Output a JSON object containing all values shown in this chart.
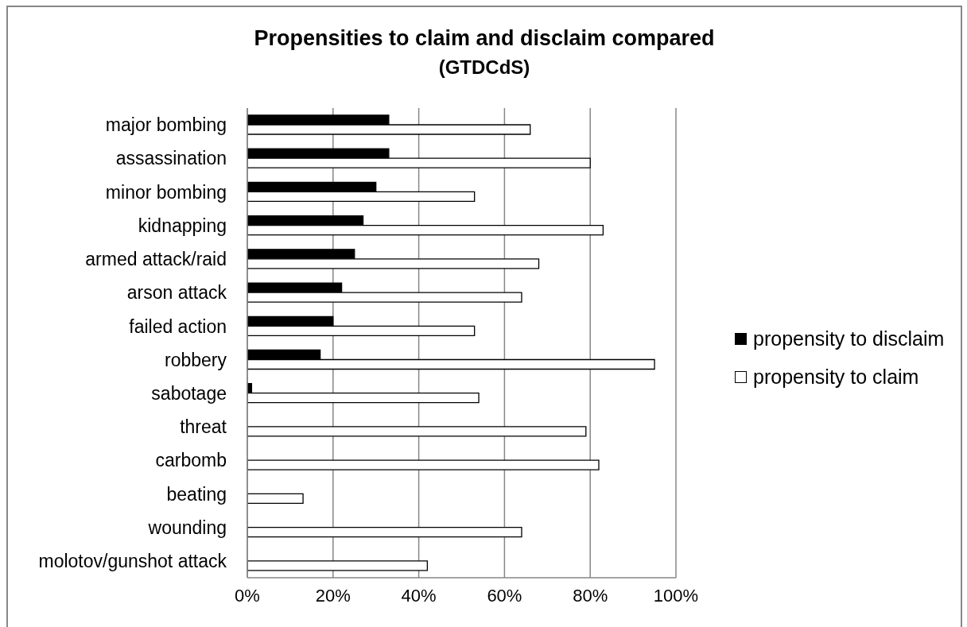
{
  "chart_data": {
    "type": "bar",
    "orientation": "horizontal",
    "title": "Propensities to claim and disclaim compared",
    "subtitle": "(GTDCdS)",
    "categories": [
      "major bombing",
      "assassination",
      "minor bombing",
      "kidnapping",
      "armed attack/raid",
      "arson attack",
      "failed action",
      "robbery",
      "sabotage",
      "threat",
      "carbomb",
      "beating",
      "wounding",
      "molotov/gunshot attack"
    ],
    "series": [
      {
        "name": "propensity to disclaim",
        "color": "#000000",
        "values": [
          33,
          33,
          30,
          27,
          25,
          22,
          20,
          17,
          1,
          0,
          0,
          0,
          0,
          0
        ]
      },
      {
        "name": "propensity to claim",
        "color": "#ffffff",
        "values": [
          66,
          80,
          53,
          83,
          68,
          64,
          53,
          95,
          54,
          79,
          82,
          13,
          64,
          42
        ]
      }
    ],
    "xlim": [
      0,
      100
    ],
    "xticks": [
      {
        "value": 0,
        "label": "0%"
      },
      {
        "value": 20,
        "label": "20%"
      },
      {
        "value": 40,
        "label": "40%"
      },
      {
        "value": 60,
        "label": "60%"
      },
      {
        "value": 80,
        "label": "80%"
      },
      {
        "value": 100,
        "label": "100%"
      }
    ],
    "grid": "x",
    "legend": "right"
  }
}
